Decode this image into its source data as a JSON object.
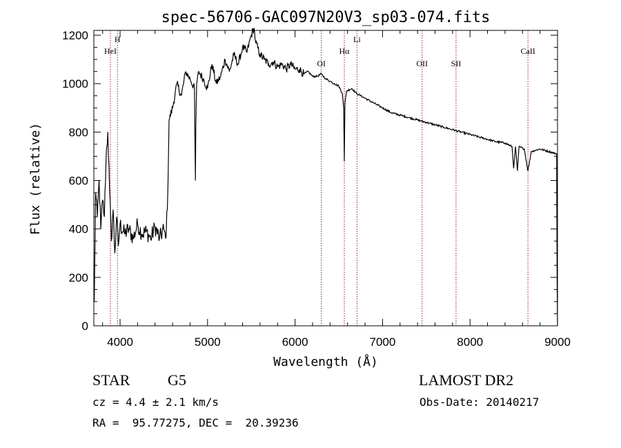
{
  "chart_data": {
    "type": "line",
    "title": "spec-56706-GAC097N20V3_sp03-074.fits",
    "xlabel": "Wavelength (Å)",
    "ylabel": "Flux (relative)",
    "xlim": [
      3700,
      9000
    ],
    "ylim": [
      0,
      1220
    ],
    "x_ticks": [
      4000,
      5000,
      6000,
      7000,
      8000,
      9000
    ],
    "y_ticks": [
      0,
      200,
      400,
      600,
      800,
      1000,
      1200
    ],
    "x_tick_labels": [
      "4000",
      "5000",
      "6000",
      "7000",
      "8000",
      "9000"
    ],
    "y_tick_labels": [
      "0",
      "200",
      "400",
      "600",
      "800",
      "1000",
      "1200"
    ],
    "grid": false,
    "line_color": "#000000",
    "marker_color": "#8b1a1a",
    "series": [
      {
        "x": [
          3705,
          3720,
          3740,
          3760,
          3780,
          3800,
          3820,
          3840,
          3860,
          3880,
          3900,
          3920,
          3940,
          3960,
          3980,
          4000,
          4050,
          4100,
          4150,
          4200,
          4250,
          4300,
          4350,
          4400,
          4450,
          4500,
          4520,
          4540,
          4560,
          4600,
          4650,
          4700,
          4750,
          4800,
          4850,
          4855,
          4861,
          4866,
          4875,
          4900,
          4950,
          5000,
          5050,
          5100,
          5150,
          5200,
          5250,
          5300,
          5350,
          5400,
          5450,
          5500,
          5530,
          5550,
          5600,
          5650,
          5700,
          5750,
          5800,
          5850,
          5900,
          5950,
          6000,
          6050,
          6100,
          6150,
          6200,
          6250,
          6300,
          6350,
          6400,
          6450,
          6500,
          6540,
          6556,
          6563,
          6570,
          6590,
          6650,
          6700,
          6750,
          6800,
          6900,
          7000,
          7100,
          7200,
          7300,
          7400,
          7500,
          7600,
          7700,
          7800,
          7900,
          8000,
          8100,
          8200,
          8300,
          8400,
          8480,
          8498,
          8520,
          8542,
          8560,
          8620,
          8662,
          8700,
          8800,
          8900,
          8990,
          8995,
          9000
        ],
        "values": [
          100,
          550,
          450,
          600,
          400,
          520,
          450,
          700,
          800,
          560,
          350,
          480,
          300,
          450,
          330,
          420,
          380,
          400,
          360,
          420,
          380,
          390,
          360,
          410,
          360,
          400,
          360,
          480,
          850,
          900,
          1000,
          950,
          1050,
          1020,
          980,
          800,
          600,
          820,
          1000,
          1050,
          1020,
          980,
          1080,
          1000,
          1030,
          1100,
          1050,
          1120,
          1080,
          1150,
          1130,
          1200,
          1230,
          1170,
          1120,
          1100,
          1080,
          1090,
          1070,
          1080,
          1060,
          1080,
          1060,
          1060,
          1040,
          1050,
          1030,
          1030,
          1040,
          1020,
          1010,
          1000,
          990,
          960,
          900,
          680,
          920,
          970,
          980,
          960,
          950,
          940,
          920,
          900,
          880,
          870,
          860,
          850,
          840,
          830,
          820,
          810,
          800,
          790,
          780,
          770,
          760,
          755,
          740,
          650,
          740,
          640,
          740,
          730,
          640,
          720,
          730,
          720,
          710,
          200,
          0
        ]
      }
    ],
    "line_markers": [
      {
        "label": "HeI",
        "x": 3889
      },
      {
        "label": "H",
        "x": 3970
      },
      {
        "label": "OI",
        "x": 6300
      },
      {
        "label": "Hα",
        "x": 6563
      },
      {
        "label": "Li",
        "x": 6708
      },
      {
        "label": "OII",
        "x": 7452
      },
      {
        "label": "SII",
        "x": 7840
      },
      {
        "label": "CaII",
        "x": 8662
      }
    ]
  },
  "info": {
    "object_type": "STAR",
    "spectral_class": "G5",
    "survey": "LAMOST DR2",
    "velocity": "cz = 4.4 ± 2.1 km/s",
    "obs_date": "Obs-Date: 20140217",
    "coords": "RA =  95.77275, DEC =  20.39236"
  }
}
